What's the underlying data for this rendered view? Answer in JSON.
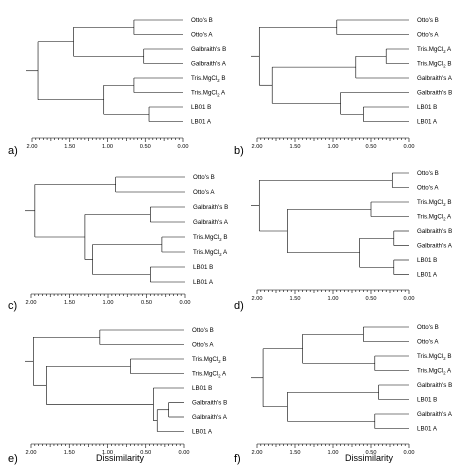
{
  "chart_data": [
    {
      "type": "dendrogram",
      "panel_label": "a)",
      "xlabel": "",
      "xlim": [
        2.0,
        0.0
      ],
      "ticks": [
        "2.00",
        "1.50",
        "1.00",
        "0.50",
        "0.00"
      ],
      "leaves": [
        "Otto's B",
        "Otto's A",
        "Galbraith's B",
        "Galbraith's A",
        "Tris.MgCl2 B",
        "Tris.MgCl2 A",
        "LB01 B",
        "LB01 A"
      ],
      "tree": {
        "h": 1.92,
        "c": [
          {
            "h": 1.45,
            "c": [
              {
                "h": 0.65,
                "c": [
                  {
                    "leaf": 0
                  },
                  {
                    "leaf": 1
                  }
                ]
              },
              {
                "h": 0.52,
                "c": [
                  {
                    "leaf": 2
                  },
                  {
                    "leaf": 3
                  }
                ]
              }
            ]
          },
          {
            "h": 1.05,
            "c": [
              {
                "h": 0.65,
                "c": [
                  {
                    "leaf": 4
                  },
                  {
                    "leaf": 5
                  }
                ]
              },
              {
                "h": 0.45,
                "c": [
                  {
                    "leaf": 6
                  },
                  {
                    "leaf": 7
                  }
                ]
              }
            ]
          }
        ]
      }
    },
    {
      "type": "dendrogram",
      "panel_label": "b)",
      "xlabel": "",
      "xlim": [
        2.0,
        0.0
      ],
      "ticks": [
        "2.00",
        "1.50",
        "1.00",
        "0.50",
        "0.00"
      ],
      "leaves": [
        "Otto's B",
        "Otto's A",
        "Tris.MgCl2 A",
        "Tris.MgCl2 B",
        "Galbraith's A",
        "Galbraith's B",
        "LB01 B",
        "LB01 A"
      ],
      "tree": {
        "h": 1.97,
        "c": [
          {
            "h": 0.95,
            "c": [
              {
                "leaf": 0
              },
              {
                "leaf": 1
              }
            ]
          },
          {
            "h": 1.8,
            "c": [
              {
                "h": 0.7,
                "c": [
                  {
                    "h": 0.3,
                    "c": [
                      {
                        "leaf": 2
                      },
                      {
                        "leaf": 3
                      }
                    ]
                  },
                  {
                    "leaf": 4
                  }
                ]
              },
              {
                "h": 0.9,
                "c": [
                  {
                    "leaf": 5
                  },
                  {
                    "h": 0.6,
                    "c": [
                      {
                        "leaf": 6
                      },
                      {
                        "leaf": 7
                      }
                    ]
                  }
                ]
              }
            ]
          }
        ]
      }
    },
    {
      "type": "dendrogram",
      "panel_label": "c)",
      "xlabel": "",
      "xlim": [
        2.0,
        0.0
      ],
      "ticks": [
        "2.00",
        "1.50",
        "1.00",
        "0.50",
        "0.00"
      ],
      "leaves": [
        "Otto's B",
        "Otto's A",
        "Galbraith's B",
        "Galbraith's A",
        "Tris.MgCl2 B",
        "Tris.MgCl2 A",
        "LB01 B",
        "LB01 A"
      ],
      "tree": {
        "h": 1.95,
        "c": [
          {
            "h": 0.9,
            "c": [
              {
                "leaf": 0
              },
              {
                "leaf": 1
              }
            ]
          },
          {
            "h": 1.3,
            "c": [
              {
                "h": 0.45,
                "c": [
                  {
                    "leaf": 2
                  },
                  {
                    "leaf": 3
                  }
                ]
              },
              {
                "h": 1.2,
                "c": [
                  {
                    "h": 0.3,
                    "c": [
                      {
                        "leaf": 4
                      },
                      {
                        "leaf": 5
                      }
                    ]
                  },
                  {
                    "h": 0.45,
                    "c": [
                      {
                        "leaf": 6
                      },
                      {
                        "leaf": 7
                      }
                    ]
                  }
                ]
              }
            ]
          }
        ]
      }
    },
    {
      "type": "dendrogram",
      "panel_label": "d)",
      "xlabel": "",
      "xlim": [
        2.0,
        0.0
      ],
      "ticks": [
        "2.00",
        "1.50",
        "1.00",
        "0.50",
        "0.00"
      ],
      "leaves": [
        "Otto's B",
        "Otto's A",
        "Tris.MgCl2 B",
        "Tris.MgCl2 A",
        "Galbraith's B",
        "Galbraith's A",
        "LB01 B",
        "LB01 A"
      ],
      "tree": {
        "h": 1.97,
        "c": [
          {
            "h": 0.22,
            "c": [
              {
                "leaf": 0
              },
              {
                "leaf": 1
              }
            ]
          },
          {
            "h": 1.6,
            "c": [
              {
                "h": 0.5,
                "c": [
                  {
                    "leaf": 2
                  },
                  {
                    "leaf": 3
                  }
                ]
              },
              {
                "h": 0.65,
                "c": [
                  {
                    "h": 0.2,
                    "c": [
                      {
                        "leaf": 4
                      },
                      {
                        "leaf": 5
                      }
                    ]
                  },
                  {
                    "h": 0.2,
                    "c": [
                      {
                        "leaf": 6
                      },
                      {
                        "leaf": 7
                      }
                    ]
                  }
                ]
              }
            ]
          }
        ]
      }
    },
    {
      "type": "dendrogram",
      "panel_label": "e)",
      "xlabel": "Dissimilarity",
      "xlim": [
        2.0,
        0.0
      ],
      "ticks": [
        "2.00",
        "1.50",
        "1.00",
        "0.50",
        "0.00"
      ],
      "leaves": [
        "Otto's B",
        "Otto's A",
        "Tris.MgCl2 B",
        "Tris.MgCl2 A",
        "LB01 B",
        "Galbraith's B",
        "Galbraith's A",
        "LB01 A"
      ],
      "tree": {
        "h": 1.97,
        "c": [
          {
            "h": 1.1,
            "c": [
              {
                "leaf": 0
              },
              {
                "leaf": 1
              }
            ]
          },
          {
            "h": 1.8,
            "c": [
              {
                "h": 0.7,
                "c": [
                  {
                    "leaf": 2
                  },
                  {
                    "leaf": 3
                  }
                ]
              },
              {
                "h": 0.4,
                "c": [
                  {
                    "leaf": 4
                  },
                  {
                    "h": 0.35,
                    "c": [
                      {
                        "h": 0.2,
                        "c": [
                          {
                            "leaf": 5
                          },
                          {
                            "leaf": 6
                          }
                        ]
                      },
                      {
                        "leaf": 7
                      }
                    ]
                  }
                ]
              }
            ]
          }
        ]
      }
    },
    {
      "type": "dendrogram",
      "panel_label": "f)",
      "xlabel": "Dissimilarity",
      "xlim": [
        2.0,
        0.0
      ],
      "ticks": [
        "2.00",
        "1.50",
        "1.00",
        "0.50",
        "0.00"
      ],
      "leaves": [
        "Otto's B",
        "Otto's A",
        "Tris.MgCl2 B",
        "Tris.MgCl2 A",
        "Galbraith's B",
        "LB01 B",
        "Galbraith's A",
        "LB01 A"
      ],
      "tree": {
        "h": 1.92,
        "c": [
          {
            "h": 1.4,
            "c": [
              {
                "h": 0.6,
                "c": [
                  {
                    "leaf": 0
                  },
                  {
                    "leaf": 1
                  }
                ]
              },
              {
                "h": 0.45,
                "c": [
                  {
                    "leaf": 2
                  },
                  {
                    "leaf": 3
                  }
                ]
              }
            ]
          },
          {
            "h": 1.6,
            "c": [
              {
                "h": 0.4,
                "c": [
                  {
                    "leaf": 4
                  },
                  {
                    "leaf": 5
                  }
                ]
              },
              {
                "h": 0.45,
                "c": [
                  {
                    "leaf": 6
                  },
                  {
                    "leaf": 7
                  }
                ]
              }
            ]
          }
        ]
      }
    }
  ]
}
